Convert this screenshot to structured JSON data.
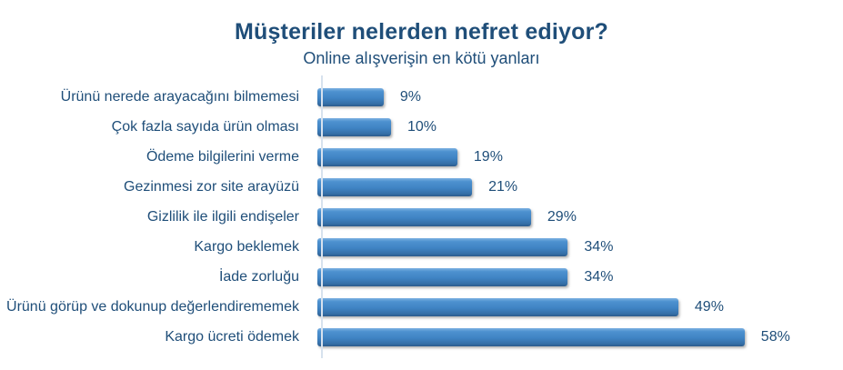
{
  "header": {
    "title": "Müşteriler nelerden nefret ediyor?",
    "subtitle": "Online alışverişin en kötü yanları"
  },
  "chart_data": {
    "type": "bar",
    "orientation": "horizontal",
    "title": "Müşteriler nelerden nefret ediyor?",
    "subtitle": "Online alışverişin en kötü yanları",
    "categories": [
      "Ürünü nerede arayacağını bilmemesi",
      "Çok fazla sayıda ürün olması",
      "Ödeme bilgilerini verme",
      "Gezinmesi zor site arayüzü",
      "Gizlilik ile ilgili endişeler",
      "Kargo beklemek",
      "İade zorluğu",
      "Ürünü görüp ve dokunup değerlendirememek",
      "Kargo ücreti ödemek"
    ],
    "values": [
      9,
      10,
      19,
      21,
      29,
      34,
      34,
      49,
      58
    ],
    "value_labels": [
      "9%",
      "10%",
      "19%",
      "21%",
      "29%",
      "34%",
      "34%",
      "49%",
      "58%"
    ],
    "unit": "%",
    "xlim": [
      0,
      60
    ],
    "grid": false,
    "legend": false,
    "bar_color": "#3D85C6",
    "bar_highlight_color": "#7FB2E2",
    "bar_shadow_color": "#2A5B8C",
    "text_color": "#1F4E79",
    "axis_line_color": "#D7E2EE",
    "background_color": "#FFFFFF"
  }
}
